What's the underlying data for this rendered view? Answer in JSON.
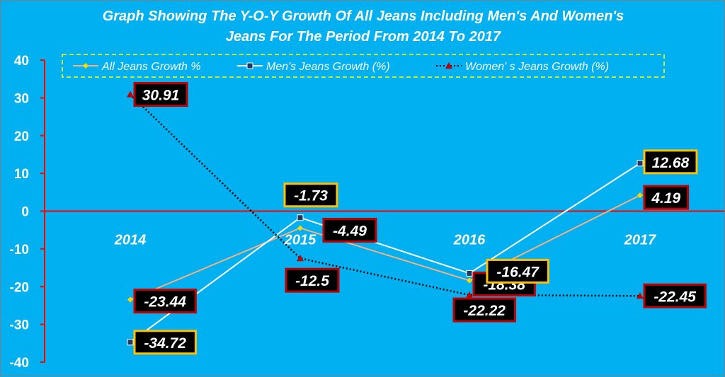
{
  "chart_data": {
    "type": "line",
    "title": "Graph Showing The Y-O-Y Growth Of All Jeans Including Men's And Women's Jeans For The Period From 2014 To 2017",
    "title_lines": [
      "Graph Showing The Y-O-Y Growth Of All Jeans Including Men's And Women's",
      "Jeans For The Period From 2014 To 2017"
    ],
    "categories": [
      "2014",
      "2015",
      "2016",
      "2017"
    ],
    "ylim": [
      -40,
      40
    ],
    "yticks": [
      40,
      30,
      20,
      10,
      0,
      -10,
      -20,
      -30,
      -40
    ],
    "legend_position": "top",
    "grid": false,
    "series": [
      {
        "name": "All Jeans Growth %",
        "values": [
          -23.44,
          -4.49,
          -18.38,
          4.19
        ],
        "labels": [
          "-23.44",
          "-4.49",
          "-18.38",
          "4.19"
        ],
        "color": "#F4B183",
        "marker": "diamond",
        "marker_color": "#FFD700",
        "line_style": "solid",
        "label_border": "#C00000"
      },
      {
        "name": "Men's Jeans  Growth (%)",
        "values": [
          -34.72,
          -1.73,
          -16.47,
          12.68
        ],
        "labels": [
          "-34.72",
          "-1.73",
          "-16.47",
          "12.68"
        ],
        "color": "#FFFFFF",
        "marker": "square",
        "marker_color": "#1F3864",
        "line_style": "solid",
        "label_border": "#FFC000"
      },
      {
        "name": "Women' s Jeans Growth (%)",
        "values": [
          30.91,
          -12.5,
          -22.22,
          -22.45
        ],
        "labels": [
          "30.91",
          "-12.5",
          "-22.22",
          "-22.45"
        ],
        "color": "#000000",
        "marker": "triangle",
        "marker_color": "#C00000",
        "line_style": "dotted",
        "label_border": "#C00000"
      }
    ],
    "colors": {
      "background": "#00B0F0",
      "axis": "#FF0000",
      "legend_border": "#FFFF00",
      "label_fill": "#000000"
    }
  }
}
